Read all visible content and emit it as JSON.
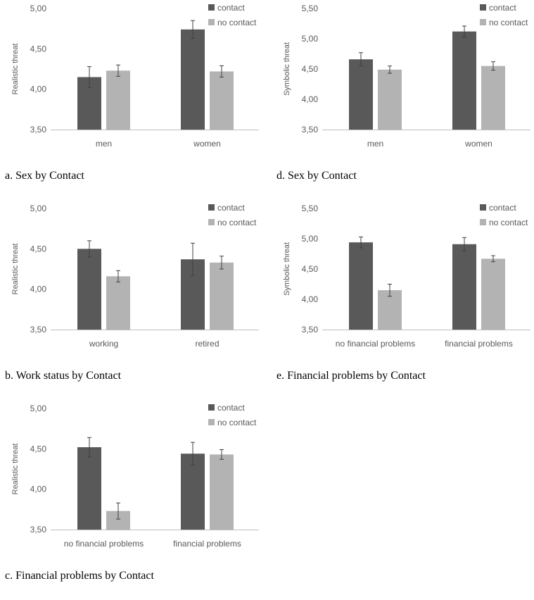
{
  "colors": {
    "contact": "#595959",
    "no_contact": "#b3b3b3",
    "axis": "#595959",
    "error": "#404040"
  },
  "chart_data": [
    {
      "id": "a",
      "type": "bar",
      "caption": "a. Sex by Contact",
      "ylabel": "Realistic threat",
      "ylim": [
        3.5,
        5.0
      ],
      "yticks": [
        "3,50",
        "4,00",
        "4,50",
        "5,00"
      ],
      "categories": [
        "men",
        "women"
      ],
      "legend_position": "top-right",
      "series": [
        {
          "name": "contact",
          "values": [
            4.15,
            4.74
          ],
          "errors": [
            0.13,
            0.11
          ]
        },
        {
          "name": "no contact",
          "values": [
            4.23,
            4.22
          ],
          "errors": [
            0.07,
            0.07
          ]
        }
      ]
    },
    {
      "id": "d",
      "type": "bar",
      "caption": "d. Sex by Contact",
      "ylabel": "Symbolic threat",
      "ylim": [
        3.5,
        5.5
      ],
      "yticks": [
        "3,50",
        "4,00",
        "4,50",
        "5,00",
        "5,50"
      ],
      "categories": [
        "men",
        "women"
      ],
      "legend_position": "top-right",
      "series": [
        {
          "name": "contact",
          "values": [
            4.66,
            5.12
          ],
          "errors": [
            0.11,
            0.09
          ]
        },
        {
          "name": "no contact",
          "values": [
            4.49,
            4.55
          ],
          "errors": [
            0.06,
            0.07
          ]
        }
      ]
    },
    {
      "id": "b",
      "type": "bar",
      "caption": "b. Work status by Contact",
      "ylabel": "Realistic threat",
      "ylim": [
        3.5,
        5.0
      ],
      "yticks": [
        "3,50",
        "4,00",
        "4,50",
        "5,00"
      ],
      "categories": [
        "working",
        "retired"
      ],
      "legend_position": "top-right",
      "series": [
        {
          "name": "contact",
          "values": [
            4.5,
            4.37
          ],
          "errors": [
            0.1,
            0.2
          ]
        },
        {
          "name": "no contact",
          "values": [
            4.16,
            4.33
          ],
          "errors": [
            0.07,
            0.08
          ]
        }
      ]
    },
    {
      "id": "e",
      "type": "bar",
      "caption": "e. Financial problems by Contact",
      "ylabel": "Symbolic threat",
      "ylim": [
        3.5,
        5.5
      ],
      "yticks": [
        "3,50",
        "4,00",
        "4,50",
        "5,00",
        "5,50"
      ],
      "categories": [
        "no financial problems",
        "financial problems"
      ],
      "legend_position": "top-right",
      "series": [
        {
          "name": "contact",
          "values": [
            4.94,
            4.91
          ],
          "errors": [
            0.09,
            0.11
          ]
        },
        {
          "name": "no contact",
          "values": [
            4.15,
            4.67
          ],
          "errors": [
            0.1,
            0.05
          ]
        }
      ]
    },
    {
      "id": "c",
      "type": "bar",
      "caption": "c. Financial problems by Contact",
      "ylabel": "Realistic threat",
      "ylim": [
        3.5,
        5.0
      ],
      "yticks": [
        "3,50",
        "4,00",
        "4,50",
        "5,00"
      ],
      "categories": [
        "no financial problems",
        "financial problems"
      ],
      "legend_position": "top-right",
      "series": [
        {
          "name": "contact",
          "values": [
            4.52,
            4.44
          ],
          "errors": [
            0.12,
            0.14
          ]
        },
        {
          "name": "no contact",
          "values": [
            3.73,
            4.43
          ],
          "errors": [
            0.1,
            0.06
          ]
        }
      ]
    }
  ]
}
